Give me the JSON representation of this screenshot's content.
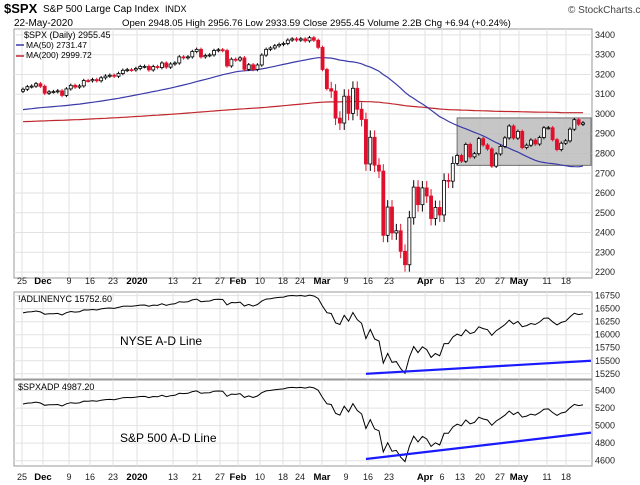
{
  "header": {
    "symbol": "$SPX",
    "name": "S&P 500 Large Cap Index",
    "exchange": "INDX",
    "date": "22-May-2020",
    "quote": "Open 2948.05  High 2956.76  Low 2933.59  Close 2955.45  Volume 2.2B  Chg +6.94 (+0.24%)",
    "credit": "© StockCharts.com"
  },
  "colors": {
    "up": "#000000",
    "down": "#e0102c",
    "ma50": "#3a3aa8",
    "ma200": "#c0272d",
    "trend": "#1a1aff",
    "box_fill": "#bdbdbd",
    "grid": "#e2e2e2"
  },
  "chart_data": [
    {
      "type": "candlestick",
      "title": "$SPX (Daily) 2955.45",
      "legend": [
        "$SPX (Daily) 2955.45",
        "MA(50) 2731.47",
        "MA(200) 2999.72"
      ],
      "legend_position": "top-left",
      "x_labels": [
        "25",
        "Dec",
        "9",
        "16",
        "23",
        "2020",
        "13",
        "21",
        "27",
        "Feb",
        "10",
        "18",
        "24",
        "Mar",
        "9",
        "16",
        "23",
        "Apr",
        "6",
        "13",
        "20",
        "27",
        "May",
        "11",
        "18"
      ],
      "y_ticks": [
        2200,
        2300,
        2400,
        2500,
        2600,
        2700,
        2800,
        2900,
        3000,
        3100,
        3200,
        3300,
        3400
      ],
      "ylim": [
        2170,
        3430
      ],
      "grid": true,
      "closes": [
        3125,
        3138,
        3141,
        3153,
        3140,
        3105,
        3112,
        3113,
        3117,
        3094,
        3127,
        3145,
        3136,
        3142,
        3169,
        3168,
        3174,
        3168,
        3183,
        3192,
        3196,
        3191,
        3205,
        3221,
        3224,
        3223,
        3230,
        3240,
        3241,
        3223,
        3240,
        3235,
        3258,
        3237,
        3253,
        3258,
        3289,
        3284,
        3289,
        3316,
        3327,
        3289,
        3296,
        3299,
        3321,
        3325,
        3321,
        3243,
        3277,
        3273,
        3284,
        3226,
        3249,
        3225,
        3248,
        3298,
        3327,
        3334,
        3345,
        3352,
        3357,
        3374,
        3380,
        3374,
        3380,
        3370,
        3386,
        3373,
        3337,
        3225,
        3128,
        3116,
        2979,
        2954,
        3090,
        3003,
        3130,
        3024,
        2972,
        2747,
        2882,
        2741,
        2711,
        2386,
        2529,
        2398,
        2409,
        2305,
        2237,
        2475,
        2630,
        2541,
        2626,
        2585,
        2471,
        2527,
        2489,
        2664,
        2660,
        2750,
        2790,
        2761,
        2846,
        2783,
        2799,
        2875,
        2843,
        2823,
        2736,
        2798,
        2836,
        2879,
        2939,
        2878,
        2912,
        2830,
        2842,
        2868,
        2848,
        2881,
        2930,
        2930,
        2870,
        2820,
        2852,
        2864,
        2923,
        2971,
        2948,
        2955
      ],
      "marked_dates": {
        "high_close": "2020-02-19",
        "low_close": "2020-03-23"
      },
      "consolidation_box": {
        "y_range": [
          2740,
          2980
        ]
      },
      "series": [
        {
          "name": "MA(50)",
          "value": 2731.47
        },
        {
          "name": "MA(200)",
          "value": 2999.72
        }
      ]
    },
    {
      "type": "line",
      "title": "!ADLINENYC 15752.60",
      "annotation": "NYSE A-D Line",
      "y_ticks": [
        15250,
        15500,
        15750,
        16000,
        16250,
        16500,
        16750
      ],
      "ylim": [
        15150,
        16820
      ],
      "value": 15752.6,
      "trendline": {
        "from_y": 15250,
        "to_y": 15500
      }
    },
    {
      "type": "line",
      "title": "$SPXADP 4987.20",
      "annotation": "S&P 500 A-D Line",
      "y_ticks": [
        4600,
        4800,
        5000,
        5200,
        5400
      ],
      "ylim": [
        4540,
        5520
      ],
      "value": 4987.2,
      "trendline": {
        "from_y": 4620,
        "to_y": 4920
      }
    }
  ]
}
